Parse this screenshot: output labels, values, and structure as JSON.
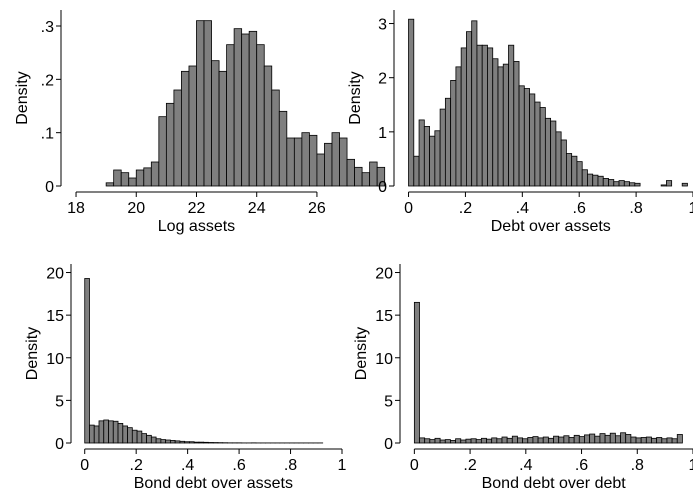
{
  "chart_data": [
    {
      "type": "bar",
      "xlabel": "Log assets",
      "ylabel": "Density",
      "xlim": [
        17.7,
        26.6
      ],
      "ylim": [
        0,
        0.33
      ],
      "xticks": [
        18,
        20,
        22,
        24,
        26
      ],
      "xtick_labels": [
        "18",
        "20",
        "22",
        "24",
        "26"
      ],
      "yticks": [
        0,
        0.1,
        0.2,
        0.3
      ],
      "ytick_labels": [
        "0",
        ".1",
        ".2",
        ".3"
      ],
      "bin_start": 19.0,
      "bin_width": 0.25,
      "values": [
        0.006,
        0.03,
        0.025,
        0.015,
        0.03,
        0.034,
        0.045,
        0.13,
        0.155,
        0.18,
        0.215,
        0.225,
        0.31,
        0.31,
        0.235,
        0.215,
        0.265,
        0.295,
        0.285,
        0.29,
        0.265,
        0.225,
        0.18,
        0.14,
        0.09,
        0.09,
        0.1,
        0.095,
        0.06,
        0.08,
        0.1,
        0.09,
        0.05,
        0.035,
        0.025,
        0.045,
        0.035
      ],
      "bar_color": "#7f7f7f",
      "grid": false
    },
    {
      "type": "bar",
      "xlabel": "Debt over assets",
      "ylabel": "Density",
      "xlim": [
        -0.03,
        1.0
      ],
      "ylim": [
        0,
        3.25
      ],
      "xticks": [
        0,
        0.2,
        0.4,
        0.6,
        0.8,
        1
      ],
      "xtick_labels": [
        "0",
        ".2",
        ".4",
        ".6",
        ".8",
        "1"
      ],
      "yticks": [
        0,
        1,
        2,
        3
      ],
      "ytick_labels": [
        "0",
        "1",
        "2",
        "3"
      ],
      "bin_start": 0.0,
      "bin_width": 0.0185,
      "values": [
        3.08,
        0.55,
        1.22,
        1.1,
        0.92,
        1.02,
        1.42,
        1.62,
        1.95,
        2.2,
        2.55,
        2.85,
        3.05,
        2.6,
        2.6,
        2.55,
        2.35,
        2.2,
        2.25,
        2.6,
        2.3,
        1.85,
        1.8,
        1.7,
        1.55,
        1.45,
        1.25,
        1.2,
        1.0,
        0.85,
        0.6,
        0.55,
        0.45,
        0.3,
        0.22,
        0.2,
        0.18,
        0.14,
        0.12,
        0.08,
        0.1,
        0.08,
        0.06,
        0.05,
        0.0,
        0.0,
        0.0,
        0.0,
        0.02,
        0.1,
        0.0,
        0.0,
        0.05
      ],
      "bar_color": "#7f7f7f",
      "grid": false
    },
    {
      "type": "bar",
      "xlabel": "Bond debt over assets",
      "ylabel": "Density",
      "xlim": [
        -0.03,
        1.0
      ],
      "ylim": [
        0,
        21
      ],
      "xticks": [
        0,
        0.2,
        0.4,
        0.6,
        0.8,
        1
      ],
      "xtick_labels": [
        "0",
        ".2",
        ".4",
        ".6",
        ".8",
        "1"
      ],
      "yticks": [
        0,
        5,
        10,
        15,
        20
      ],
      "ytick_labels": [
        "0",
        "5",
        "10",
        "15",
        "20"
      ],
      "bin_start": 0.0,
      "bin_width": 0.0185,
      "values": [
        19.3,
        2.1,
        2.0,
        2.6,
        2.7,
        2.6,
        2.55,
        2.3,
        2.0,
        1.8,
        1.5,
        1.4,
        1.1,
        0.9,
        0.7,
        0.5,
        0.4,
        0.35,
        0.3,
        0.25,
        0.2,
        0.15,
        0.15,
        0.1,
        0.1,
        0.08,
        0.06,
        0.05,
        0.04,
        0.03,
        0.02,
        0.02,
        0.02,
        0.01,
        0.01,
        0.02,
        0.01,
        0.01,
        0.01,
        0.01,
        0.01,
        0.01,
        0.01,
        0.01,
        0.01,
        0.01,
        0.01,
        0.01,
        0.01,
        0.01
      ],
      "bar_color": "#7f7f7f",
      "grid": false
    },
    {
      "type": "bar",
      "xlabel": "Bond debt over debt",
      "ylabel": "Density",
      "xlim": [
        -0.03,
        1.0
      ],
      "ylim": [
        0,
        21
      ],
      "xticks": [
        0,
        0.2,
        0.4,
        0.6,
        0.8,
        1
      ],
      "xtick_labels": [
        "0",
        ".2",
        ".4",
        ".6",
        ".8",
        "1"
      ],
      "yticks": [
        0,
        5,
        10,
        15,
        20
      ],
      "ytick_labels": [
        "0",
        "5",
        "10",
        "15",
        "20"
      ],
      "bin_start": 0.0,
      "bin_width": 0.0185,
      "values": [
        16.5,
        0.6,
        0.5,
        0.4,
        0.55,
        0.35,
        0.4,
        0.3,
        0.5,
        0.35,
        0.45,
        0.5,
        0.4,
        0.55,
        0.45,
        0.6,
        0.5,
        0.7,
        0.55,
        0.8,
        0.6,
        0.5,
        0.65,
        0.75,
        0.6,
        0.7,
        0.55,
        0.8,
        0.7,
        0.85,
        0.65,
        0.9,
        0.75,
        0.95,
        1.05,
        0.8,
        1.1,
        0.9,
        1.15,
        0.85,
        1.2,
        1.0,
        0.7,
        0.6,
        0.65,
        0.7,
        0.55,
        0.65,
        0.5,
        0.6,
        0.5,
        1.0
      ],
      "bar_color": "#7f7f7f",
      "grid": false
    }
  ]
}
